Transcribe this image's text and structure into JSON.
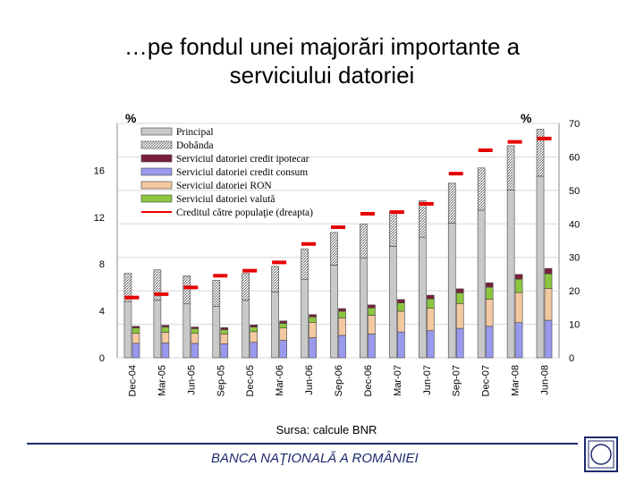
{
  "slide": {
    "title_line1": "…pe fondul unei majorări importante a",
    "title_line2": "serviciului datoriei",
    "source": "Sursa: calcule BNR",
    "footer": "BANCA NAŢIONALĂ A ROMÂNIEI",
    "logo_text": "BNR",
    "brand_color": "#1c2a6e"
  },
  "chart_data": {
    "type": "bar",
    "stacked": true,
    "categories": [
      "Dec-04",
      "Mar-05",
      "Jun-05",
      "Sep-05",
      "Dec-05",
      "Mar-06",
      "Jun-06",
      "Sep-06",
      "Dec-06",
      "Mar-07",
      "Jun-07",
      "Sep-07",
      "Dec-07",
      "Mar-08",
      "Jun-08"
    ],
    "y_left": {
      "label": "%",
      "ticks": [
        "0",
        "4",
        "8",
        "12",
        "16"
      ],
      "ylim": [
        0,
        20
      ]
    },
    "y_right": {
      "label": "%",
      "ticks": [
        "0",
        "10",
        "20",
        "30",
        "40",
        "50",
        "60",
        "70"
      ],
      "ylim": [
        0,
        70
      ]
    },
    "legend_position": "top-left",
    "left_series": [
      {
        "name": "Principal",
        "color": "#c9c9c9",
        "values": [
          4.8,
          4.9,
          4.6,
          4.4,
          4.9,
          5.6,
          6.7,
          7.9,
          8.5,
          9.5,
          10.3,
          11.5,
          12.6,
          14.3,
          15.5
        ]
      },
      {
        "name": "Dobânda",
        "color": "#e6e6e6",
        "values": [
          2.4,
          2.6,
          2.4,
          2.2,
          2.3,
          2.2,
          2.6,
          2.8,
          2.9,
          3.0,
          3.1,
          3.4,
          3.6,
          3.8,
          4.0
        ]
      }
    ],
    "right_series": [
      {
        "name": "Serviciul datoriei credit ipotecar",
        "color": "#7a1f3b",
        "values": [
          0.5,
          0.5,
          0.5,
          0.6,
          0.6,
          0.7,
          0.7,
          0.8,
          0.9,
          1.0,
          1.1,
          1.2,
          1.3,
          1.4,
          1.6
        ]
      },
      {
        "name": "Serviciul datoriei credit consum",
        "color": "#9999ee",
        "values": [
          4.3,
          4.4,
          4.3,
          4.2,
          4.6,
          5.2,
          6.0,
          6.7,
          7.1,
          7.7,
          8.1,
          8.8,
          9.4,
          10.5,
          11.2
        ]
      },
      {
        "name": "Serviciul datoriei RON",
        "color": "#f4c8a0",
        "values": [
          3.0,
          3.2,
          3.0,
          2.9,
          3.2,
          3.7,
          4.5,
          5.2,
          5.6,
          6.2,
          6.7,
          7.4,
          8.1,
          9.0,
          9.5
        ]
      },
      {
        "name": "Serviciul datoriei valută",
        "color": "#8cc63f",
        "values": [
          1.6,
          1.6,
          1.4,
          1.3,
          1.4,
          1.4,
          1.7,
          2.0,
          2.2,
          2.5,
          2.8,
          3.2,
          3.6,
          4.0,
          4.4
        ]
      }
    ],
    "line_series": {
      "name": "Creditul către populaţie (dreapta)",
      "color": "#e60000",
      "axis": "right",
      "values": [
        18,
        19,
        21,
        24.5,
        26,
        28.5,
        34,
        39,
        43,
        43.5,
        46,
        55,
        62,
        64.5,
        65.5
      ]
    }
  }
}
